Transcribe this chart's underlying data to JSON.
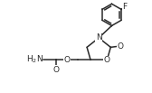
{
  "bg_color": "#ffffff",
  "line_color": "#2a2a2a",
  "line_width": 1.1,
  "font_size": 6.5,
  "fig_width": 1.68,
  "fig_height": 1.03,
  "dpi": 100,
  "xlim": [
    0,
    10.0
  ],
  "ylim": [
    0,
    6.0
  ]
}
